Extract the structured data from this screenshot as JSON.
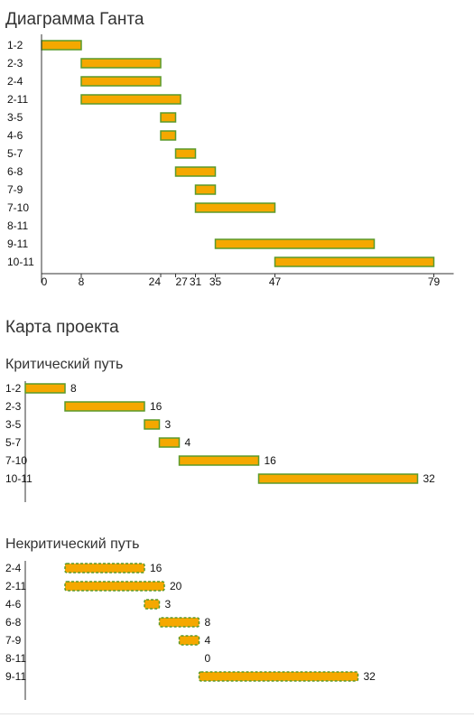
{
  "gantt_title": "Диаграмма Ганта",
  "project_map_title": "Карта проекта",
  "critical_title": "Критический путь",
  "noncritical_title": "Некритический путь",
  "colors": {
    "bar_fill": "#f5a800",
    "bar_stroke": "#5a9a2c",
    "axis": "#333333"
  },
  "chart_data": [
    {
      "type": "bar",
      "orientation": "horizontal",
      "name": "gantt",
      "categories": [
        "1-2",
        "2-3",
        "2-4",
        "2-11",
        "3-5",
        "4-6",
        "5-7",
        "6-8",
        "7-9",
        "7-10",
        "8-11",
        "9-11",
        "10-11"
      ],
      "start": [
        0,
        8,
        8,
        8,
        24,
        24,
        27,
        27,
        31,
        31,
        35,
        35,
        47
      ],
      "end": [
        8,
        24,
        24,
        28,
        27,
        27,
        31,
        35,
        35,
        47,
        35,
        67,
        79
      ],
      "x_ticks": [
        "0",
        "8",
        "24",
        "27",
        "31",
        "35",
        "47",
        "79"
      ],
      "x_tick_values": [
        0,
        8,
        24,
        27,
        31,
        35,
        47,
        79
      ],
      "xlim": [
        0,
        83
      ]
    },
    {
      "type": "bar",
      "orientation": "horizontal",
      "name": "critical",
      "categories": [
        "1-2",
        "2-3",
        "3-5",
        "5-7",
        "7-10",
        "10-11"
      ],
      "start": [
        0,
        8,
        24,
        27,
        31,
        47
      ],
      "values": [
        8,
        16,
        3,
        4,
        16,
        32
      ],
      "style": "solid"
    },
    {
      "type": "bar",
      "orientation": "horizontal",
      "name": "noncritical",
      "categories": [
        "2-4",
        "2-11",
        "4-6",
        "6-8",
        "7-9",
        "8-11",
        "9-11"
      ],
      "start": [
        8,
        8,
        24,
        27,
        31,
        35,
        35
      ],
      "values": [
        16,
        20,
        3,
        8,
        4,
        0,
        32
      ],
      "style": "dashed"
    }
  ]
}
